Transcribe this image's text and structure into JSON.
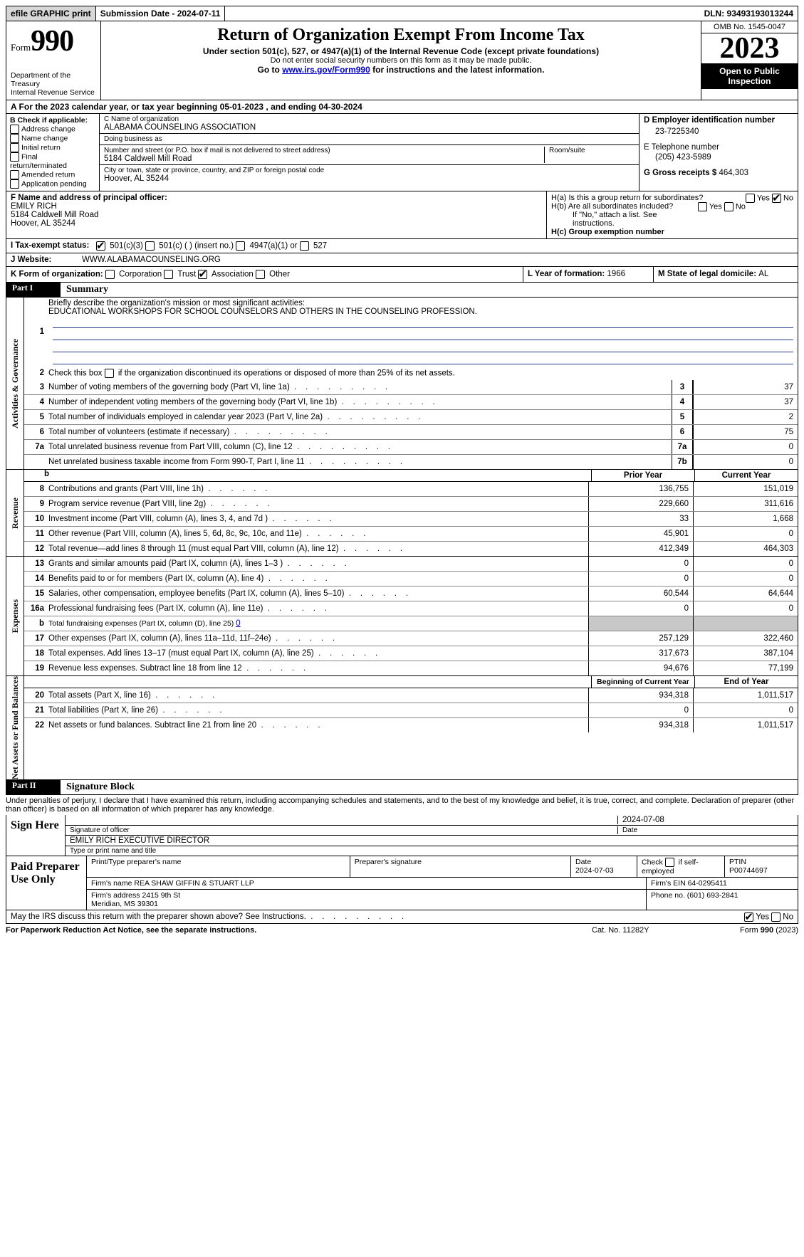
{
  "colors": {
    "black": "#000000",
    "white": "#ffffff",
    "link": "#0000cc",
    "mission_line": "#2a3a8a",
    "shaded": "#c8c8c8",
    "btn_bg": "#d7d7d7"
  },
  "topbar": {
    "efile": "efile GRAPHIC print",
    "submission": "Submission Date - 2024-07-11",
    "dln": "DLN: 93493193013244"
  },
  "header": {
    "form_word": "Form",
    "form_no": "990",
    "dept": "Department of the Treasury",
    "irs": "Internal Revenue Service",
    "title": "Return of Organization Exempt From Income Tax",
    "sub": "Under section 501(c), 527, or 4947(a)(1) of the Internal Revenue Code (except private foundations)",
    "ssn": "Do not enter social security numbers on this form as it may be made public.",
    "goto_pre": "Go to ",
    "goto_link": "www.irs.gov/Form990",
    "goto_post": " for instructions and the latest information.",
    "omb": "OMB No. 1545-0047",
    "year": "2023",
    "open": "Open to Public Inspection"
  },
  "period": {
    "text_a": "A For the 2023 calendar year, or tax year beginning ",
    "begin": "05-01-2023",
    "mid": "   , and ending ",
    "end": "04-30-2024"
  },
  "box_b": {
    "label": "B Check if applicable:",
    "items": [
      "Address change",
      "Name change",
      "Initial return",
      "Final return/terminated",
      "Amended return",
      "Application pending"
    ]
  },
  "box_c": {
    "name_lbl": "C Name of organization",
    "name": "ALABAMA COUNSELING ASSOCIATION",
    "dba_lbl": "Doing business as",
    "dba": "",
    "street_lbl": "Number and street (or P.O. box if mail is not delivered to street address)",
    "street": "5184 Caldwell Mill Road",
    "room_lbl": "Room/suite",
    "city_lbl": "City or town, state or province, country, and ZIP or foreign postal code",
    "city": "Hoover, AL  35244"
  },
  "box_d": {
    "ein_lbl": "D Employer identification number",
    "ein": "23-7225340",
    "tel_lbl": "E Telephone number",
    "tel": "(205) 423-5989",
    "gross_lbl": "G Gross receipts $ ",
    "gross": "464,303"
  },
  "box_f": {
    "lbl": "F  Name and address of principal officer:",
    "name": "EMILY RICH",
    "addr1": "5184 Caldwell Mill Road",
    "addr2": "Hoover, AL  35244"
  },
  "box_h": {
    "a": "H(a)  Is this a group return for subordinates?",
    "a_yes": "Yes",
    "a_no": "No",
    "b": "H(b)  Are all subordinates included?",
    "b_note": "If \"No,\" attach a list. See instructions.",
    "c": "H(c)  Group exemption number  "
  },
  "tax_exempt": {
    "lbl": "I    Tax-exempt status:",
    "o1": "501(c)(3)",
    "o2": "501(c) (  ) (insert no.)",
    "o3": "4947(a)(1) or",
    "o4": "527"
  },
  "website": {
    "lbl": "J   Website: ",
    "val": "WWW.ALABAMACOUNSELING.ORG"
  },
  "box_k": {
    "lbl": "K Form of organization:",
    "opts": [
      "Corporation",
      "Trust",
      "Association",
      "Other"
    ],
    "checked_idx": 2
  },
  "box_l": {
    "lbl": "L Year of formation: ",
    "val": "1966"
  },
  "box_m": {
    "lbl": "M State of legal domicile: ",
    "val": "AL"
  },
  "part1": {
    "hdr": "Part I",
    "title": "Summary",
    "line1_lbl": "Briefly describe the organization's mission or most significant activities:",
    "mission": "EDUCATIONAL WORKSHOPS FOR SCHOOL COUNSELORS AND OTHERS IN THE COUNSELING PROFESSION.",
    "line2": "Check this box      if the organization discontinued its operations or disposed of more than 25% of its net assets.",
    "governance_label": "Activities & Governance",
    "revenue_label": "Revenue",
    "expenses_label": "Expenses",
    "netassets_label": "Net Assets or Fund Balances",
    "gov_rows": [
      {
        "n": "3",
        "d": "Number of voting members of the governing body (Part VI, line 1a)",
        "box": "3",
        "v": "37"
      },
      {
        "n": "4",
        "d": "Number of independent voting members of the governing body (Part VI, line 1b)",
        "box": "4",
        "v": "37"
      },
      {
        "n": "5",
        "d": "Total number of individuals employed in calendar year 2023 (Part V, line 2a)",
        "box": "5",
        "v": "2"
      },
      {
        "n": "6",
        "d": "Total number of volunteers (estimate if necessary)",
        "box": "6",
        "v": "75"
      },
      {
        "n": "7a",
        "d": "Total unrelated business revenue from Part VIII, column (C), line 12",
        "box": "7a",
        "v": "0"
      },
      {
        "n": "",
        "d": "Net unrelated business taxable income from Form 990-T, Part I, line 11",
        "box": "7b",
        "v": "0"
      }
    ],
    "prior_hdr": "Prior Year",
    "current_hdr": "Current Year",
    "rev_rows": [
      {
        "n": "8",
        "d": "Contributions and grants (Part VIII, line 1h)",
        "p": "136,755",
        "c": "151,019"
      },
      {
        "n": "9",
        "d": "Program service revenue (Part VIII, line 2g)",
        "p": "229,660",
        "c": "311,616"
      },
      {
        "n": "10",
        "d": "Investment income (Part VIII, column (A), lines 3, 4, and 7d )",
        "p": "33",
        "c": "1,668"
      },
      {
        "n": "11",
        "d": "Other revenue (Part VIII, column (A), lines 5, 6d, 8c, 9c, 10c, and 11e)",
        "p": "45,901",
        "c": "0"
      },
      {
        "n": "12",
        "d": "Total revenue—add lines 8 through 11 (must equal Part VIII, column (A), line 12)",
        "p": "412,349",
        "c": "464,303"
      }
    ],
    "exp_rows": [
      {
        "n": "13",
        "d": "Grants and similar amounts paid (Part IX, column (A), lines 1–3 )",
        "p": "0",
        "c": "0"
      },
      {
        "n": "14",
        "d": "Benefits paid to or for members (Part IX, column (A), line 4)",
        "p": "0",
        "c": "0"
      },
      {
        "n": "15",
        "d": "Salaries, other compensation, employee benefits (Part IX, column (A), lines 5–10)",
        "p": "60,544",
        "c": "64,644"
      },
      {
        "n": "16a",
        "d": "Professional fundraising fees (Part IX, column (A), line 11e)",
        "p": "0",
        "c": "0"
      },
      {
        "n": "b",
        "d": "Total fundraising expenses (Part IX, column (D), line 25) ",
        "link": "0",
        "shaded": true
      },
      {
        "n": "17",
        "d": "Other expenses (Part IX, column (A), lines 11a–11d, 11f–24e)",
        "p": "257,129",
        "c": "322,460"
      },
      {
        "n": "18",
        "d": "Total expenses. Add lines 13–17 (must equal Part IX, column (A), line 25)",
        "p": "317,673",
        "c": "387,104"
      },
      {
        "n": "19",
        "d": "Revenue less expenses. Subtract line 18 from line 12",
        "p": "94,676",
        "c": "77,199"
      }
    ],
    "na_prior": "Beginning of Current Year",
    "na_curr": "End of Year",
    "na_rows": [
      {
        "n": "20",
        "d": "Total assets (Part X, line 16)",
        "p": "934,318",
        "c": "1,011,517"
      },
      {
        "n": "21",
        "d": "Total liabilities (Part X, line 26)",
        "p": "0",
        "c": "0"
      },
      {
        "n": "22",
        "d": "Net assets or fund balances. Subtract line 21 from line 20",
        "p": "934,318",
        "c": "1,011,517"
      }
    ]
  },
  "part2": {
    "hdr": "Part II",
    "title": "Signature Block",
    "penalty": "Under penalties of perjury, I declare that I have examined this return, including accompanying schedules and statements, and to the best of my knowledge and belief, it is true, correct, and complete. Declaration of preparer (other than officer) is based on all information of which preparer has any knowledge.",
    "sign_here": "Sign Here",
    "sig_date": "2024-07-08",
    "sig_lbl": "Signature of officer",
    "date_lbl": "Date",
    "officer": "EMILY RICH  EXECUTIVE DIRECTOR",
    "type_lbl": "Type or print name and title",
    "paid": "Paid Preparer Use Only",
    "prep_name_lbl": "Print/Type preparer's name",
    "prep_sig_lbl": "Preparer's signature",
    "prep_date_lbl": "Date",
    "prep_date": "2024-07-03",
    "self_emp": "Check        if self-employed",
    "ptin_lbl": "PTIN",
    "ptin": "P00744697",
    "firm_name_lbl": "Firm's name   ",
    "firm_name": "REA SHAW GIFFIN & STUART LLP",
    "firm_ein_lbl": "Firm's EIN  ",
    "firm_ein": "64-0295411",
    "firm_addr_lbl": "Firm's address ",
    "firm_addr1": "2415 9th St",
    "firm_addr2": "Meridian, MS  39301",
    "phone_lbl": "Phone no. ",
    "phone": "(601) 693-2841",
    "discuss": "May the IRS discuss this return with the preparer shown above? See Instructions.",
    "yes": "Yes",
    "no": "No"
  },
  "footer": {
    "left": "For Paperwork Reduction Act Notice, see the separate instructions.",
    "mid": "Cat. No. 11282Y",
    "right_a": "Form ",
    "right_b": "990",
    "right_c": " (2023)"
  }
}
